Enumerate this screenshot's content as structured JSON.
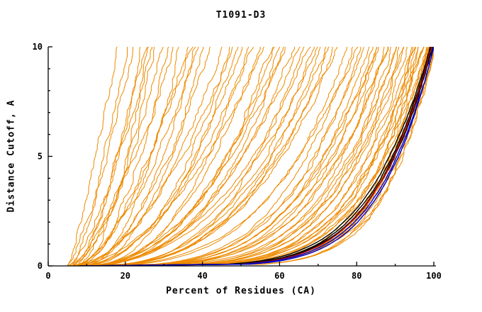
{
  "chart_data": {
    "type": "line",
    "title": "T1091-D3",
    "xlabel": "Percent of Residues (CA)",
    "ylabel": "Distance Cutoff, A",
    "xlim": [
      0,
      100
    ],
    "ylim": [
      0,
      10
    ],
    "x_major_ticks": [
      0,
      20,
      40,
      60,
      80,
      100
    ],
    "x_minor_ticks": [
      10,
      30,
      50,
      70,
      90
    ],
    "y_major_ticks": [
      0,
      5,
      10
    ],
    "y_minor_ticks": [
      1,
      2,
      3,
      4,
      6,
      7,
      8,
      9
    ],
    "grid": false,
    "legend": null,
    "colors": {
      "model_curves": "#ED8A00",
      "best_model_curves": "#000000",
      "secondary_reference_curve": "#C00000",
      "reference_curves": "#0000CC",
      "axis": "#000000",
      "background": "#FFFFFF"
    },
    "series_model": "Each curve is [x_start_percent, x_percent_at_cutoff_10A, shape_exponent p]; curve follows y = 10*((x-x0)/(x1-x0))^p, y in Angstroms, x = percent of CA residues",
    "model_curves": [
      [
        5,
        18,
        1.2
      ],
      [
        6,
        20,
        1.4
      ],
      [
        5,
        22,
        1.3
      ],
      [
        7,
        24,
        1.6
      ],
      [
        6,
        25,
        1.5
      ],
      [
        8,
        26,
        1.8
      ],
      [
        5,
        27,
        1.4
      ],
      [
        7,
        28,
        1.7
      ],
      [
        6,
        30,
        1.6
      ],
      [
        8,
        31,
        1.9
      ],
      [
        5,
        33,
        1.5
      ],
      [
        9,
        34,
        2.0
      ],
      [
        6,
        36,
        1.8
      ],
      [
        7,
        37,
        1.6
      ],
      [
        8,
        38,
        2.1
      ],
      [
        6,
        39,
        1.7
      ],
      [
        9,
        40,
        2.2
      ],
      [
        7,
        42,
        1.9
      ],
      [
        6,
        45,
        2.0
      ],
      [
        8,
        47,
        2.3
      ],
      [
        5,
        48,
        1.9
      ],
      [
        7,
        50,
        2.2
      ],
      [
        9,
        52,
        2.5
      ],
      [
        6,
        53,
        2.1
      ],
      [
        8,
        55,
        2.4
      ],
      [
        5,
        56,
        2.0
      ],
      [
        7,
        58,
        2.6
      ],
      [
        9,
        60,
        2.3
      ],
      [
        6,
        61,
        2.8
      ],
      [
        8,
        62,
        2.2
      ],
      [
        5,
        64,
        2.7
      ],
      [
        7,
        65,
        2.4
      ],
      [
        9,
        66,
        3.0
      ],
      [
        6,
        68,
        2.5
      ],
      [
        8,
        69,
        2.9
      ],
      [
        5,
        70,
        2.6
      ],
      [
        7,
        71,
        3.1
      ],
      [
        9,
        72,
        2.7
      ],
      [
        6,
        73,
        3.2
      ],
      [
        8,
        74,
        2.8
      ],
      [
        5,
        75,
        3.0
      ],
      [
        10,
        59,
        2.4
      ],
      [
        11,
        49,
        2.1
      ],
      [
        6,
        78,
        3.4
      ],
      [
        8,
        79,
        3.8
      ],
      [
        5,
        80,
        3.2
      ],
      [
        7,
        81,
        4.0
      ],
      [
        9,
        82,
        3.6
      ],
      [
        6,
        83,
        4.2
      ],
      [
        8,
        84,
        3.9
      ],
      [
        5,
        85,
        4.5
      ],
      [
        7,
        86,
        4.1
      ],
      [
        9,
        87,
        4.8
      ],
      [
        6,
        88,
        4.3
      ],
      [
        8,
        89,
        5.0
      ],
      [
        5,
        90,
        4.6
      ],
      [
        7,
        91,
        5.2
      ],
      [
        9,
        92,
        4.9
      ],
      [
        6,
        93,
        5.5
      ],
      [
        8,
        94,
        5.1
      ],
      [
        5,
        95,
        5.8
      ],
      [
        7,
        95,
        5.4
      ],
      [
        9,
        96,
        6.0
      ],
      [
        6,
        96,
        5.6
      ],
      [
        8,
        97,
        6.2
      ],
      [
        5,
        97,
        5.9
      ],
      [
        7,
        98,
        6.5
      ],
      [
        9,
        98,
        6.1
      ],
      [
        6,
        98,
        6.8
      ],
      [
        8,
        99,
        6.4
      ],
      [
        5,
        99,
        7.0
      ],
      [
        7,
        99,
        6.6
      ],
      [
        9,
        100,
        7.2
      ],
      [
        6,
        100,
        6.9
      ],
      [
        8,
        100,
        7.5
      ],
      [
        10,
        92,
        4.4
      ],
      [
        11,
        88,
        4.0
      ],
      [
        12,
        95,
        5.0
      ],
      [
        10,
        97,
        5.7
      ],
      [
        11,
        99,
        6.3
      ],
      [
        12,
        100,
        7.0
      ],
      [
        10,
        85,
        3.7
      ],
      [
        11,
        90,
        4.7
      ]
    ],
    "best_model_curves": [
      [
        8,
        99,
        5.7
      ],
      [
        8.5,
        99.3,
        5.9
      ],
      [
        9,
        99.5,
        6.0
      ],
      [
        8,
        99.7,
        6.1
      ]
    ],
    "secondary_reference_curves": [
      [
        8.5,
        99.4,
        6.15
      ]
    ],
    "reference_curves": [
      [
        8.5,
        100,
        6.3
      ],
      [
        9,
        100,
        6.55
      ]
    ]
  }
}
